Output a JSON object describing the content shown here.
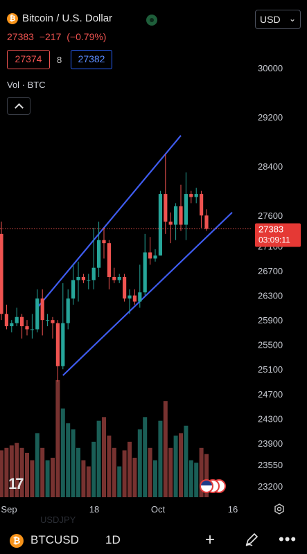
{
  "header": {
    "symbol_badge": "₿",
    "title": "Bitcoin / U.S. Dollar",
    "currency": "USD",
    "last": "27383",
    "change": "−217",
    "change_pct": "(−0.79%)",
    "bid": "27374",
    "spread": "8",
    "ask": "27382",
    "volume_label": "Vol · BTC"
  },
  "price_tag": {
    "price": "27383",
    "countdown": "03:09:11"
  },
  "bottom_bar": {
    "symbol": "BTCUSD",
    "interval": "1D",
    "plus": "+",
    "more": "•••",
    "watermark": "USDJPY"
  },
  "colors": {
    "up": "#26a69a",
    "down": "#ef5350",
    "channel": "#3f5cf0",
    "background": "#000000"
  },
  "chart_data": {
    "type": "candlestick",
    "price_axis": {
      "min": 23200,
      "max": 30000,
      "ticks": [
        30000,
        29200,
        28400,
        27600,
        27100,
        26700,
        26300,
        25900,
        25500,
        25100,
        24700,
        24300,
        23900,
        23550,
        23200
      ]
    },
    "x_ticks": [
      "Sep",
      "18",
      "Oct",
      "16"
    ],
    "candles": [
      {
        "date": "Aug 31",
        "o": 27300,
        "h": 27500,
        "l": 25900,
        "c": 26000
      },
      {
        "date": "Sep 1",
        "o": 26000,
        "h": 26150,
        "l": 25750,
        "c": 25800
      },
      {
        "date": "Sep 2",
        "o": 25800,
        "h": 25900,
        "l": 25700,
        "c": 25850
      },
      {
        "date": "Sep 3",
        "o": 25850,
        "h": 26100,
        "l": 25800,
        "c": 25950
      },
      {
        "date": "Sep 4",
        "o": 25950,
        "h": 26000,
        "l": 25600,
        "c": 25800
      },
      {
        "date": "Sep 5",
        "o": 25800,
        "h": 25900,
        "l": 25650,
        "c": 25750
      },
      {
        "date": "Sep 6",
        "o": 25750,
        "h": 26000,
        "l": 25600,
        "c": 25750
      },
      {
        "date": "Sep 7",
        "o": 25750,
        "h": 26400,
        "l": 25700,
        "c": 26250
      },
      {
        "date": "Sep 8",
        "o": 26250,
        "h": 26400,
        "l": 25650,
        "c": 25900
      },
      {
        "date": "Sep 9",
        "o": 25900,
        "h": 26000,
        "l": 25800,
        "c": 25900
      },
      {
        "date": "Sep 10",
        "o": 25900,
        "h": 25950,
        "l": 25600,
        "c": 25850
      },
      {
        "date": "Sep 11",
        "o": 25850,
        "h": 25900,
        "l": 24900,
        "c": 25150
      },
      {
        "date": "Sep 12",
        "o": 25150,
        "h": 26500,
        "l": 25100,
        "c": 25850
      },
      {
        "date": "Sep 13",
        "o": 25850,
        "h": 26400,
        "l": 25750,
        "c": 26250
      },
      {
        "date": "Sep 14",
        "o": 26250,
        "h": 26800,
        "l": 26150,
        "c": 26550
      },
      {
        "date": "Sep 15",
        "o": 26550,
        "h": 26850,
        "l": 26200,
        "c": 26600
      },
      {
        "date": "Sep 16",
        "o": 26600,
        "h": 26650,
        "l": 26500,
        "c": 26550
      },
      {
        "date": "Sep 17",
        "o": 26550,
        "h": 26650,
        "l": 26400,
        "c": 26550
      },
      {
        "date": "Sep 18",
        "o": 26550,
        "h": 27400,
        "l": 26400,
        "c": 26750
      },
      {
        "date": "Sep 19",
        "o": 26750,
        "h": 27500,
        "l": 26600,
        "c": 27200
      },
      {
        "date": "Sep 20",
        "o": 27200,
        "h": 27400,
        "l": 26900,
        "c": 27150
      },
      {
        "date": "Sep 21",
        "o": 27150,
        "h": 27200,
        "l": 26400,
        "c": 26600
      },
      {
        "date": "Sep 22",
        "o": 26600,
        "h": 26750,
        "l": 26500,
        "c": 26550
      },
      {
        "date": "Sep 23",
        "o": 26550,
        "h": 26650,
        "l": 26500,
        "c": 26600
      },
      {
        "date": "Sep 24",
        "o": 26600,
        "h": 26650,
        "l": 26200,
        "c": 26250
      },
      {
        "date": "Sep 25",
        "o": 26250,
        "h": 26400,
        "l": 26000,
        "c": 26300
      },
      {
        "date": "Sep 26",
        "o": 26300,
        "h": 26400,
        "l": 26150,
        "c": 26200
      },
      {
        "date": "Sep 27",
        "o": 26200,
        "h": 26800,
        "l": 26100,
        "c": 26350
      },
      {
        "date": "Sep 28",
        "o": 26350,
        "h": 27300,
        "l": 26300,
        "c": 27000
      },
      {
        "date": "Sep 29",
        "o": 27000,
        "h": 27250,
        "l": 26800,
        "c": 26900
      },
      {
        "date": "Sep 30",
        "o": 26900,
        "h": 27050,
        "l": 26850,
        "c": 26950
      },
      {
        "date": "Oct 1",
        "o": 26950,
        "h": 28000,
        "l": 26950,
        "c": 27950
      },
      {
        "date": "Oct 2",
        "o": 27950,
        "h": 28600,
        "l": 27300,
        "c": 27500
      },
      {
        "date": "Oct 3",
        "o": 27500,
        "h": 27650,
        "l": 27150,
        "c": 27450
      },
      {
        "date": "Oct 4",
        "o": 27450,
        "h": 27800,
        "l": 27200,
        "c": 27750
      },
      {
        "date": "Oct 5",
        "o": 27750,
        "h": 28100,
        "l": 27350,
        "c": 27450
      },
      {
        "date": "Oct 6",
        "o": 27450,
        "h": 28300,
        "l": 27200,
        "c": 27950
      },
      {
        "date": "Oct 7",
        "o": 27950,
        "h": 28000,
        "l": 27800,
        "c": 27900
      },
      {
        "date": "Oct 8",
        "o": 27900,
        "h": 28050,
        "l": 27800,
        "c": 27950
      },
      {
        "date": "Oct 9",
        "o": 27950,
        "h": 28000,
        "l": 27400,
        "c": 27600
      },
      {
        "date": "Oct 10",
        "o": 27600,
        "h": 27700,
        "l": 27350,
        "c": 27383
      }
    ],
    "volume": [
      {
        "v": 0.38,
        "up": false
      },
      {
        "v": 0.4,
        "up": false
      },
      {
        "v": 0.42,
        "up": false
      },
      {
        "v": 0.44,
        "up": false
      },
      {
        "v": 0.4,
        "up": false
      },
      {
        "v": 0.36,
        "up": false
      },
      {
        "v": 0.3,
        "up": false
      },
      {
        "v": 0.52,
        "up": true
      },
      {
        "v": 0.4,
        "up": false
      },
      {
        "v": 0.3,
        "up": true
      },
      {
        "v": 0.32,
        "up": false
      },
      {
        "v": 0.95,
        "up": false
      },
      {
        "v": 0.72,
        "up": true
      },
      {
        "v": 0.6,
        "up": true
      },
      {
        "v": 0.55,
        "up": true
      },
      {
        "v": 0.4,
        "up": true
      },
      {
        "v": 0.3,
        "up": false
      },
      {
        "v": 0.25,
        "up": false
      },
      {
        "v": 0.45,
        "up": true
      },
      {
        "v": 0.62,
        "up": true
      },
      {
        "v": 0.65,
        "up": false
      },
      {
        "v": 0.5,
        "up": false
      },
      {
        "v": 0.4,
        "up": false
      },
      {
        "v": 0.25,
        "up": true
      },
      {
        "v": 0.38,
        "up": false
      },
      {
        "v": 0.45,
        "up": false
      },
      {
        "v": 0.32,
        "up": false
      },
      {
        "v": 0.55,
        "up": true
      },
      {
        "v": 0.65,
        "up": true
      },
      {
        "v": 0.4,
        "up": false
      },
      {
        "v": 0.3,
        "up": true
      },
      {
        "v": 0.62,
        "up": true
      },
      {
        "v": 0.78,
        "up": false
      },
      {
        "v": 0.4,
        "up": false
      },
      {
        "v": 0.5,
        "up": true
      },
      {
        "v": 0.52,
        "up": false
      },
      {
        "v": 0.58,
        "up": true
      },
      {
        "v": 0.3,
        "up": true
      },
      {
        "v": 0.28,
        "up": true
      },
      {
        "v": 0.4,
        "up": false
      },
      {
        "v": 0.35,
        "up": false
      }
    ],
    "channel_lines": [
      {
        "from": {
          "date": "Sep 7",
          "price": 26100
        },
        "to": {
          "date": "Oct 5",
          "price": 28900
        }
      },
      {
        "from": {
          "date": "Sep 12",
          "price": 25000
        },
        "to": {
          "date": "Oct 15",
          "price": 27650
        }
      }
    ]
  }
}
